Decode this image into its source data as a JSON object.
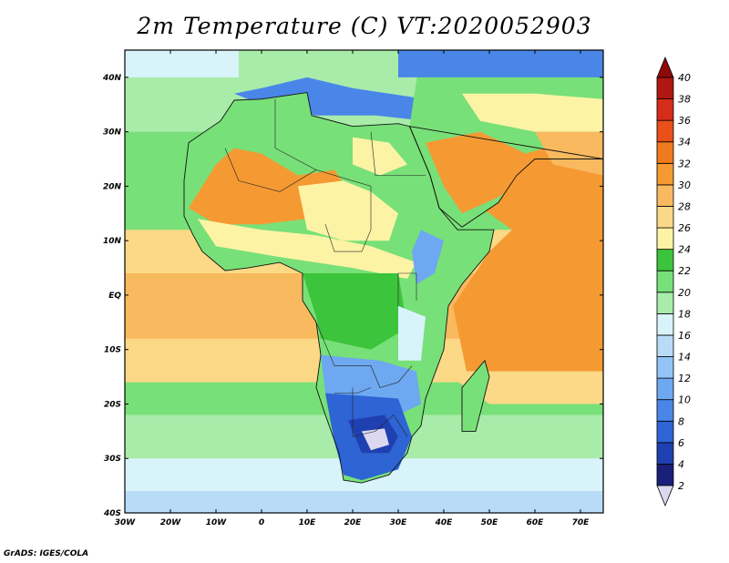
{
  "title": "2m Temperature (C) VT:2020052903",
  "credit": "GrADS: IGES/COLA",
  "lon_labels": [
    "30W",
    "20W",
    "10W",
    "0",
    "10E",
    "20E",
    "30E",
    "40E",
    "50E",
    "60E",
    "70E"
  ],
  "lat_labels": [
    "40N",
    "30N",
    "20N",
    "10N",
    "EQ",
    "10S",
    "20S",
    "30S",
    "40S"
  ],
  "lon_range": [
    -30,
    75
  ],
  "lat_range": [
    -40,
    45
  ],
  "colorbar": {
    "levels": [
      "2",
      "4",
      "6",
      "8",
      "10",
      "12",
      "14",
      "16",
      "18",
      "20",
      "22",
      "24",
      "26",
      "28",
      "30",
      "32",
      "34",
      "36",
      "38",
      "40"
    ],
    "colors": [
      "#dcd8f0",
      "#1a1f7a",
      "#1f40b0",
      "#2e64d4",
      "#4a86e8",
      "#6ea8f0",
      "#92c4f6",
      "#b8dcf8",
      "#d9f3fb",
      "#a9ecaa",
      "#78e078",
      "#3cc43c",
      "#fdf3a5",
      "#fbd986",
      "#f8b95f",
      "#f59a33",
      "#f07a1e",
      "#e9501a",
      "#d62c1a",
      "#b01612",
      "#8c0a0a"
    ]
  },
  "map_colors": {
    "ocean_south_cold": "#b8dcf8",
    "ocean_south_cool": "#d9f3fb",
    "ocean_south_mild": "#a9ecaa",
    "ocean_south_warm": "#78e078",
    "ocean_tropical": "#fbd986",
    "ocean_warm": "#f8b95f",
    "ocean_hot": "#f59a33",
    "land_green": "#78e078",
    "land_darkgreen": "#3cc43c",
    "land_yellow": "#fdf3a5",
    "land_orange": "#f59a33",
    "land_blue": "#6ea8f0",
    "land_deepblue": "#1f40b0",
    "land_lavender": "#dcd8f0",
    "med_blue": "#4a86e8",
    "med_deep": "#2e64d4"
  }
}
